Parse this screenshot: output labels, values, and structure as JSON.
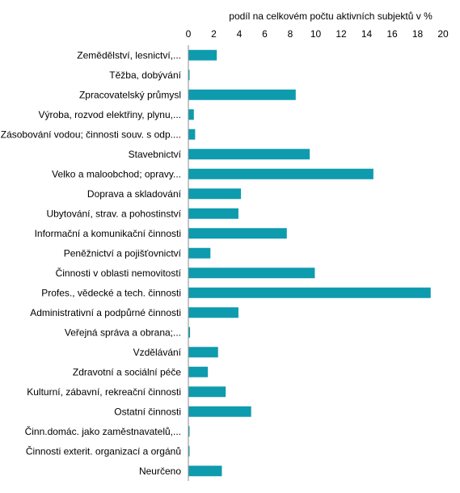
{
  "chart_data": {
    "type": "bar",
    "orientation": "horizontal",
    "title": "",
    "xlabel": "podíl na celkovém počtu aktivních subjektů v %",
    "ylabel": "",
    "axis_position": "top",
    "xlim": [
      0,
      20
    ],
    "xticks": [
      "0",
      "2",
      "4",
      "6",
      "8",
      "10",
      "12",
      "14",
      "16",
      "18",
      "20"
    ],
    "grid": false,
    "bar_color": "#0e9bae",
    "categories": [
      "Zemědělství, lesnictví,...",
      "Těžba, dobývání",
      "Zpracovatelský průmysl",
      "Výroba, rozvod elektřiny, plynu,...",
      "Zásobování vodou; činnosti souv. s odp....",
      "Stavebnictví",
      "Velko a maloobchod; opravy...",
      "Doprava a skladování",
      "Ubytování, strav. a pohostinství",
      "Informační a komunikační činnosti",
      "Peněžnictví a pojišťovnictví",
      "Činnosti v oblasti nemovitostí",
      "Profes., vědecké a tech. činnosti",
      "Administrativní a podpůrné činnosti",
      "Veřejná správa a obrana;...",
      "Vzdělávání",
      "Zdravotní a sociální péče",
      "Kulturní, zábavní, rekreační činnosti",
      "Ostatní činnosti",
      "Činn.domác. jako zaměstnavatelů,...",
      "Činnosti exterit. organizací a orgánů",
      "Neurčeno"
    ],
    "values": [
      2.2,
      0.05,
      8.4,
      0.4,
      0.5,
      9.5,
      14.5,
      4.1,
      3.9,
      7.7,
      1.7,
      9.9,
      19.0,
      3.9,
      0.1,
      2.3,
      1.5,
      2.9,
      4.9,
      0.02,
      0.05,
      2.6
    ]
  }
}
